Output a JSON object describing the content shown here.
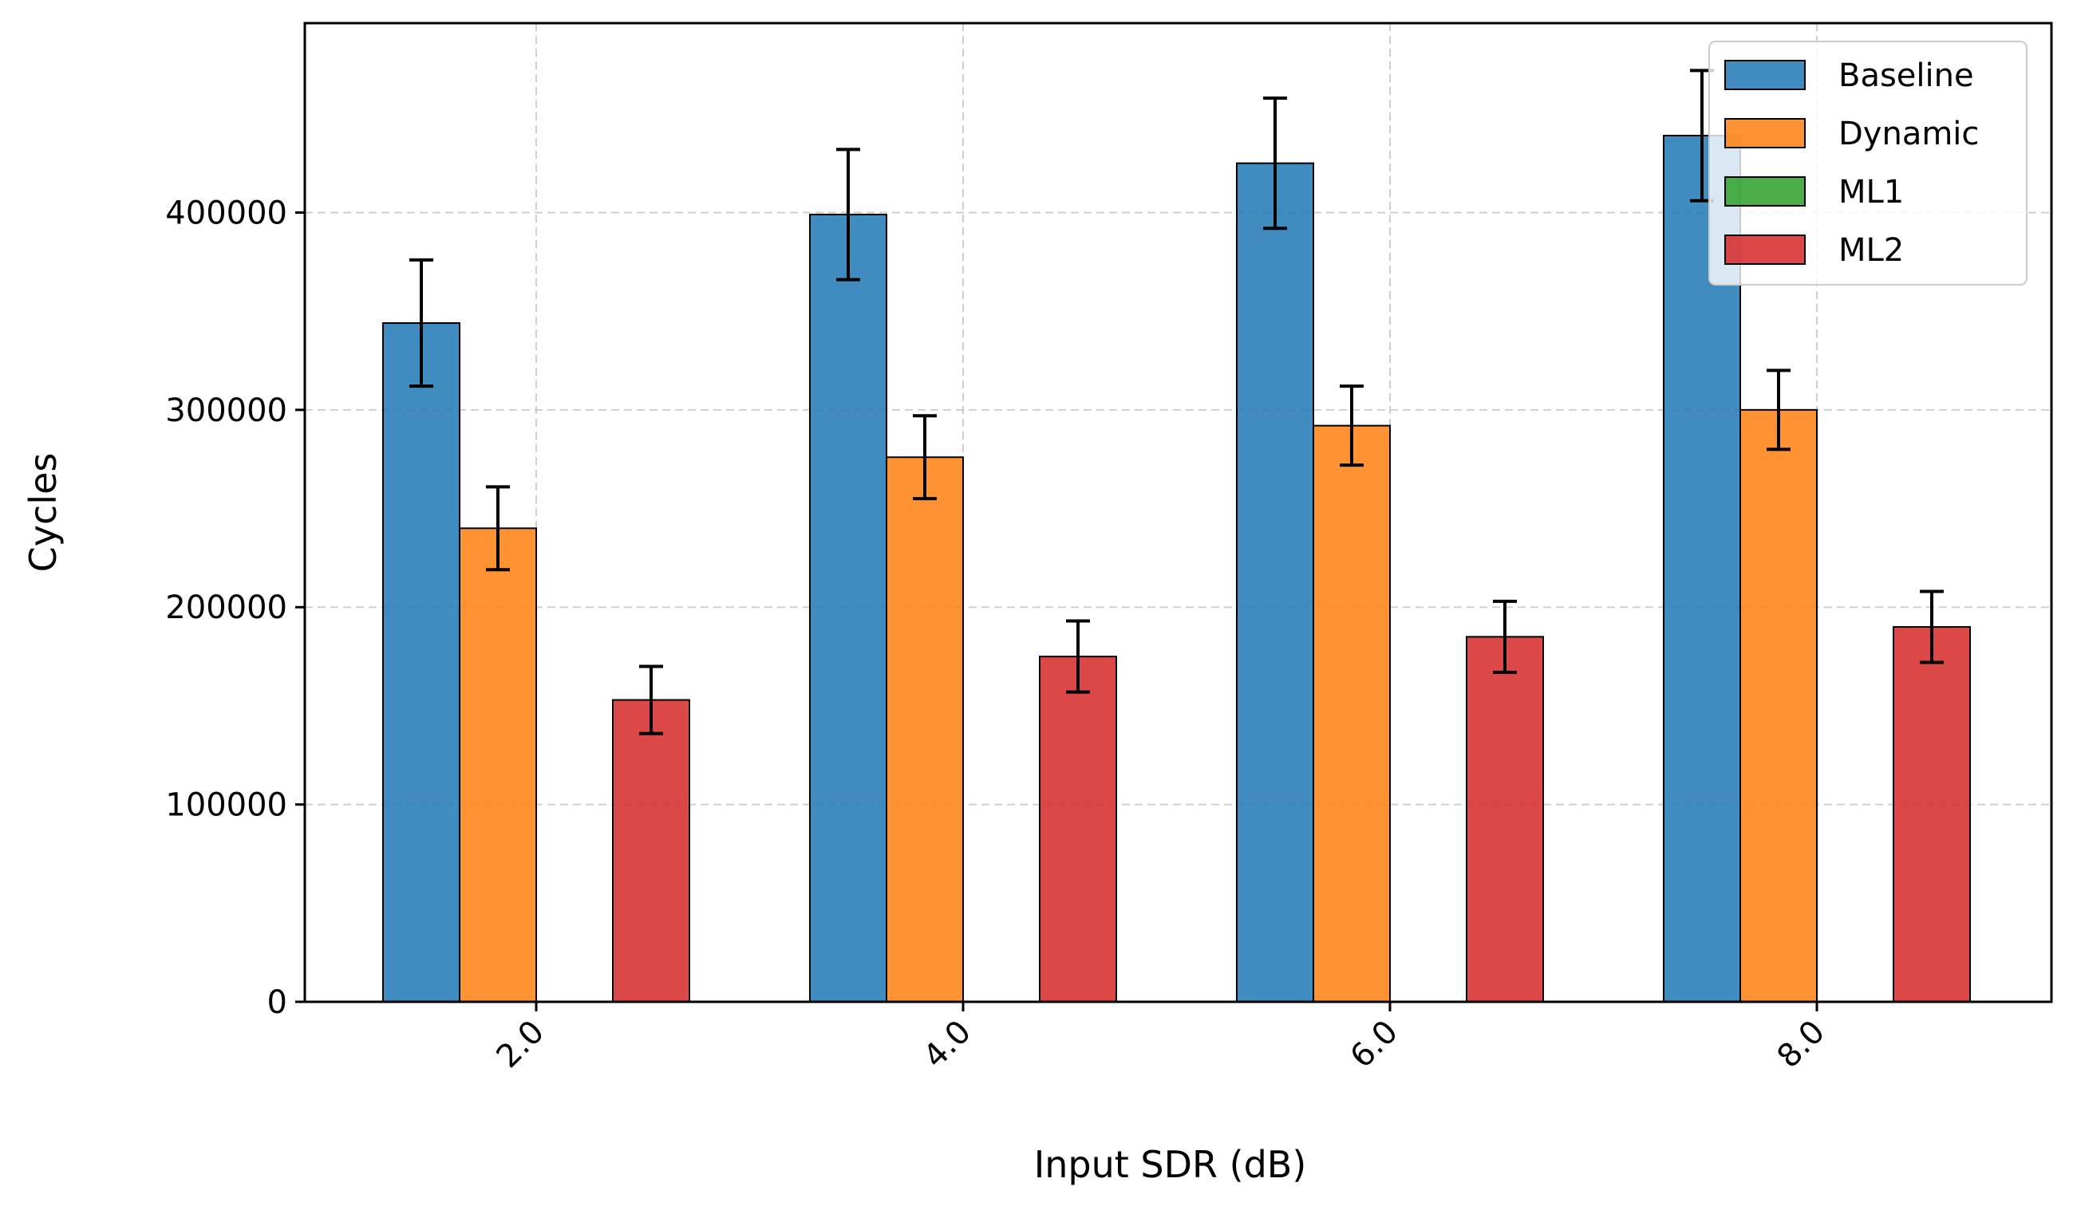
{
  "chart_data": {
    "type": "bar",
    "title": "",
    "xlabel": "Input SDR (dB)",
    "ylabel": "Cycles",
    "categories": [
      "2.0",
      "4.0",
      "6.0",
      "8.0"
    ],
    "ylim": [
      0,
      496000
    ],
    "yticks": [
      0,
      100000,
      200000,
      300000,
      400000
    ],
    "ytick_labels": [
      "0",
      "100000",
      "200000",
      "300000",
      "400000"
    ],
    "grid": true,
    "legend_position": "top-right",
    "error_bars": true,
    "series": [
      {
        "name": "Baseline",
        "color": "#1f77b4",
        "values": [
          344000,
          399000,
          425000,
          439000
        ],
        "errors": [
          32000,
          33000,
          33000,
          33000
        ]
      },
      {
        "name": "Dynamic",
        "color": "#ff7f0e",
        "values": [
          240000,
          276000,
          292000,
          300000
        ],
        "errors": [
          21000,
          21000,
          20000,
          20000
        ]
      },
      {
        "name": "ML1",
        "color": "#2ca02c",
        "values": [
          0,
          0,
          0,
          0
        ],
        "errors": [
          0,
          0,
          0,
          0
        ]
      },
      {
        "name": "ML2",
        "color": "#d62728",
        "values": [
          153000,
          175000,
          185000,
          190000
        ],
        "errors": [
          17000,
          18000,
          18000,
          18000
        ]
      }
    ]
  }
}
